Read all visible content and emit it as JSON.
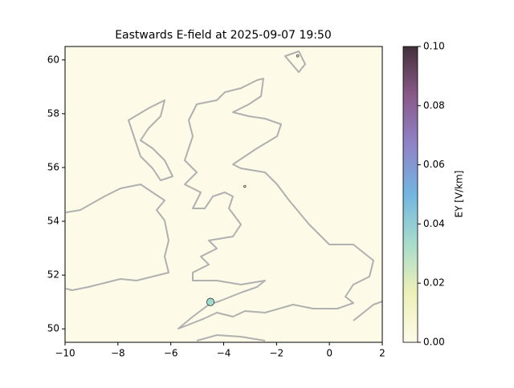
{
  "chart_data": {
    "type": "scatter",
    "title": "Eastwards E-field at 2025-09-07 19:50",
    "x": [
      -1.2,
      -3.2,
      -4.5
    ],
    "series": [
      {
        "y": [
          60.15,
          55.3,
          51.0
        ],
        "values": [
          0.002,
          0.001,
          0.035
        ]
      }
    ],
    "xlim": [
      -10,
      2
    ],
    "xticks": [
      {
        "value": -10,
        "label": "−10"
      },
      {
        "value": -8,
        "label": "−8"
      },
      {
        "value": -6,
        "label": "−6"
      },
      {
        "value": -4,
        "label": "−4"
      },
      {
        "value": -2,
        "label": "−2"
      },
      0,
      2
    ],
    "ylim": [
      49.5,
      60.5
    ],
    "yticks": [
      50,
      52,
      54,
      56,
      58,
      60
    ],
    "colorbar": {
      "label": "EY [V/km]",
      "lim": [
        0,
        0.1
      ],
      "ticks": [
        {
          "value": 0,
          "label": "0.00"
        },
        {
          "value": 0.02,
          "label": "0.02"
        },
        {
          "value": 0.04,
          "label": "0.04"
        },
        {
          "value": 0.06,
          "label": "0.06"
        },
        {
          "value": 0.08,
          "label": "0.08"
        },
        {
          "value": 0.1,
          "label": "0.10"
        }
      ],
      "colors": [
        "#fdfbe8",
        "#eef0b8",
        "#a8dccc",
        "#72b6e0",
        "#8f84c8",
        "#8a5a8a",
        "#43303a"
      ]
    },
    "background": "#fdfbe8"
  }
}
